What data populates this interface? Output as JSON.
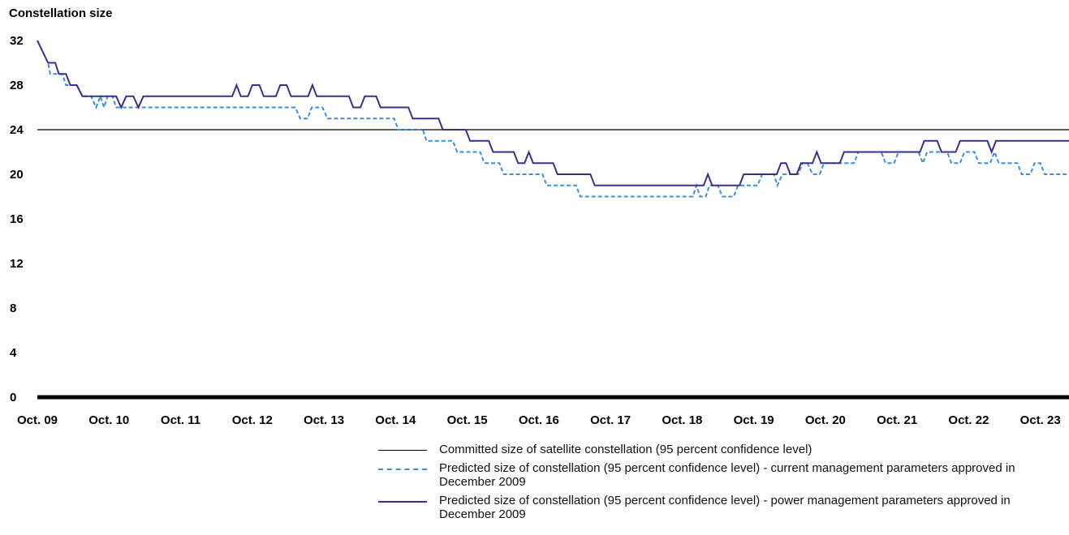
{
  "chart_data": {
    "type": "line",
    "title": "Constellation size",
    "xlabel": "",
    "ylabel": "",
    "ylim": [
      0,
      32
    ],
    "yticks": [
      "0",
      "4",
      "8",
      "12",
      "16",
      "20",
      "24",
      "28",
      "32"
    ],
    "xlim": [
      2009,
      2023.4
    ],
    "xtick_labels": [
      "Oct. 09",
      "Oct. 10",
      "Oct. 11",
      "Oct. 12",
      "Oct. 13",
      "Oct. 14",
      "Oct. 15",
      "Oct. 16",
      "Oct. 17",
      "Oct. 18",
      "Oct. 19",
      "Oct. 20",
      "Oct. 21",
      "Oct. 22",
      "Oct. 23"
    ],
    "grid": false,
    "legend_position": "bottom",
    "series": [
      {
        "name": "Committed size of satellite constellation (95 percent confidence level)",
        "style": "thin-solid",
        "color": "#000000",
        "points": [
          [
            2009,
            24
          ],
          [
            2023.4,
            24
          ]
        ]
      },
      {
        "name": "Predicted size of constellation (95 percent confidence level) - current management parameters approved in December 2009",
        "style": "dashed",
        "color": "#3a8ee6",
        "points": [
          [
            2009.0,
            32
          ],
          [
            2009.15,
            30
          ],
          [
            2009.18,
            29
          ],
          [
            2009.35,
            29
          ],
          [
            2009.4,
            28
          ],
          [
            2009.55,
            28
          ],
          [
            2009.63,
            27
          ],
          [
            2009.75,
            27
          ],
          [
            2009.82,
            26
          ],
          [
            2009.88,
            27
          ],
          [
            2009.93,
            26
          ],
          [
            2009.98,
            27
          ],
          [
            2010.05,
            27
          ],
          [
            2010.1,
            26
          ],
          [
            2011.0,
            26
          ],
          [
            2012.0,
            26
          ],
          [
            2012.6,
            26
          ],
          [
            2012.67,
            25
          ],
          [
            2012.77,
            25
          ],
          [
            2012.83,
            26
          ],
          [
            2012.98,
            26
          ],
          [
            2013.05,
            25
          ],
          [
            2013.4,
            25
          ],
          [
            2013.98,
            25
          ],
          [
            2014.04,
            24
          ],
          [
            2014.38,
            24
          ],
          [
            2014.43,
            23
          ],
          [
            2014.8,
            23
          ],
          [
            2014.86,
            22
          ],
          [
            2015.18,
            22
          ],
          [
            2015.24,
            21
          ],
          [
            2015.45,
            21
          ],
          [
            2015.51,
            20
          ],
          [
            2016.05,
            20
          ],
          [
            2016.11,
            19
          ],
          [
            2016.52,
            19
          ],
          [
            2016.58,
            18
          ],
          [
            2017.0,
            18
          ],
          [
            2018.0,
            18
          ],
          [
            2018.15,
            18
          ],
          [
            2018.2,
            19
          ],
          [
            2018.25,
            18
          ],
          [
            2018.33,
            18
          ],
          [
            2018.38,
            19
          ],
          [
            2018.5,
            19
          ],
          [
            2018.56,
            18
          ],
          [
            2018.72,
            18
          ],
          [
            2018.78,
            19
          ],
          [
            2019.05,
            19
          ],
          [
            2019.12,
            20
          ],
          [
            2019.28,
            20
          ],
          [
            2019.33,
            19
          ],
          [
            2019.4,
            20
          ],
          [
            2019.62,
            20
          ],
          [
            2019.68,
            21
          ],
          [
            2019.75,
            21
          ],
          [
            2019.82,
            20
          ],
          [
            2019.92,
            20
          ],
          [
            2019.98,
            21
          ],
          [
            2020.4,
            21
          ],
          [
            2020.46,
            22
          ],
          [
            2020.78,
            22
          ],
          [
            2020.84,
            21
          ],
          [
            2020.96,
            21
          ],
          [
            2021.02,
            22
          ],
          [
            2021.3,
            22
          ],
          [
            2021.36,
            21
          ],
          [
            2021.42,
            22
          ],
          [
            2021.7,
            22
          ],
          [
            2021.76,
            21
          ],
          [
            2021.88,
            21
          ],
          [
            2021.94,
            22
          ],
          [
            2022.08,
            22
          ],
          [
            2022.14,
            21
          ],
          [
            2022.3,
            21
          ],
          [
            2022.36,
            22
          ],
          [
            2022.42,
            21
          ],
          [
            2022.68,
            21
          ],
          [
            2022.74,
            20
          ],
          [
            2022.86,
            20
          ],
          [
            2022.92,
            21
          ],
          [
            2023.0,
            21
          ],
          [
            2023.06,
            20
          ],
          [
            2023.4,
            20
          ]
        ]
      },
      {
        "name": "Predicted size of constellation (95 percent confidence level) - power management parameters approved in December 2009",
        "style": "solid",
        "color": "#3b2f8c",
        "points": [
          [
            2009.0,
            32
          ],
          [
            2009.15,
            30
          ],
          [
            2009.25,
            30
          ],
          [
            2009.3,
            29
          ],
          [
            2009.4,
            29
          ],
          [
            2009.46,
            28
          ],
          [
            2009.55,
            28
          ],
          [
            2009.63,
            27
          ],
          [
            2010.1,
            27
          ],
          [
            2010.17,
            26
          ],
          [
            2010.24,
            27
          ],
          [
            2010.34,
            27
          ],
          [
            2010.41,
            26
          ],
          [
            2010.48,
            27
          ],
          [
            2011.0,
            27
          ],
          [
            2011.72,
            27
          ],
          [
            2011.78,
            28
          ],
          [
            2011.84,
            27
          ],
          [
            2011.94,
            27
          ],
          [
            2012.0,
            28
          ],
          [
            2012.1,
            28
          ],
          [
            2012.16,
            27
          ],
          [
            2012.33,
            27
          ],
          [
            2012.39,
            28
          ],
          [
            2012.48,
            28
          ],
          [
            2012.54,
            27
          ],
          [
            2012.78,
            27
          ],
          [
            2012.84,
            28
          ],
          [
            2012.9,
            27
          ],
          [
            2013.35,
            27
          ],
          [
            2013.41,
            26
          ],
          [
            2013.51,
            26
          ],
          [
            2013.57,
            27
          ],
          [
            2013.73,
            27
          ],
          [
            2013.79,
            26
          ],
          [
            2014.18,
            26
          ],
          [
            2014.24,
            25
          ],
          [
            2014.6,
            25
          ],
          [
            2014.66,
            24
          ],
          [
            2014.98,
            24
          ],
          [
            2015.04,
            23
          ],
          [
            2015.3,
            23
          ],
          [
            2015.36,
            22
          ],
          [
            2015.65,
            22
          ],
          [
            2015.71,
            21
          ],
          [
            2015.8,
            21
          ],
          [
            2015.86,
            22
          ],
          [
            2015.92,
            21
          ],
          [
            2016.2,
            21
          ],
          [
            2016.26,
            20
          ],
          [
            2016.72,
            20
          ],
          [
            2016.78,
            19
          ],
          [
            2017.0,
            19
          ],
          [
            2018.0,
            19
          ],
          [
            2018.3,
            19
          ],
          [
            2018.36,
            20
          ],
          [
            2018.42,
            19
          ],
          [
            2018.8,
            19
          ],
          [
            2018.86,
            20
          ],
          [
            2019.32,
            20
          ],
          [
            2019.38,
            21
          ],
          [
            2019.45,
            21
          ],
          [
            2019.51,
            20
          ],
          [
            2019.6,
            20
          ],
          [
            2019.66,
            21
          ],
          [
            2019.82,
            21
          ],
          [
            2019.88,
            22
          ],
          [
            2019.94,
            21
          ],
          [
            2020.2,
            21
          ],
          [
            2020.26,
            22
          ],
          [
            2021.0,
            22
          ],
          [
            2021.32,
            22
          ],
          [
            2021.38,
            23
          ],
          [
            2021.56,
            23
          ],
          [
            2021.62,
            22
          ],
          [
            2021.82,
            22
          ],
          [
            2021.88,
            23
          ],
          [
            2022.26,
            23
          ],
          [
            2022.32,
            22
          ],
          [
            2022.38,
            23
          ],
          [
            2023.0,
            23
          ],
          [
            2023.4,
            23
          ]
        ]
      }
    ]
  }
}
